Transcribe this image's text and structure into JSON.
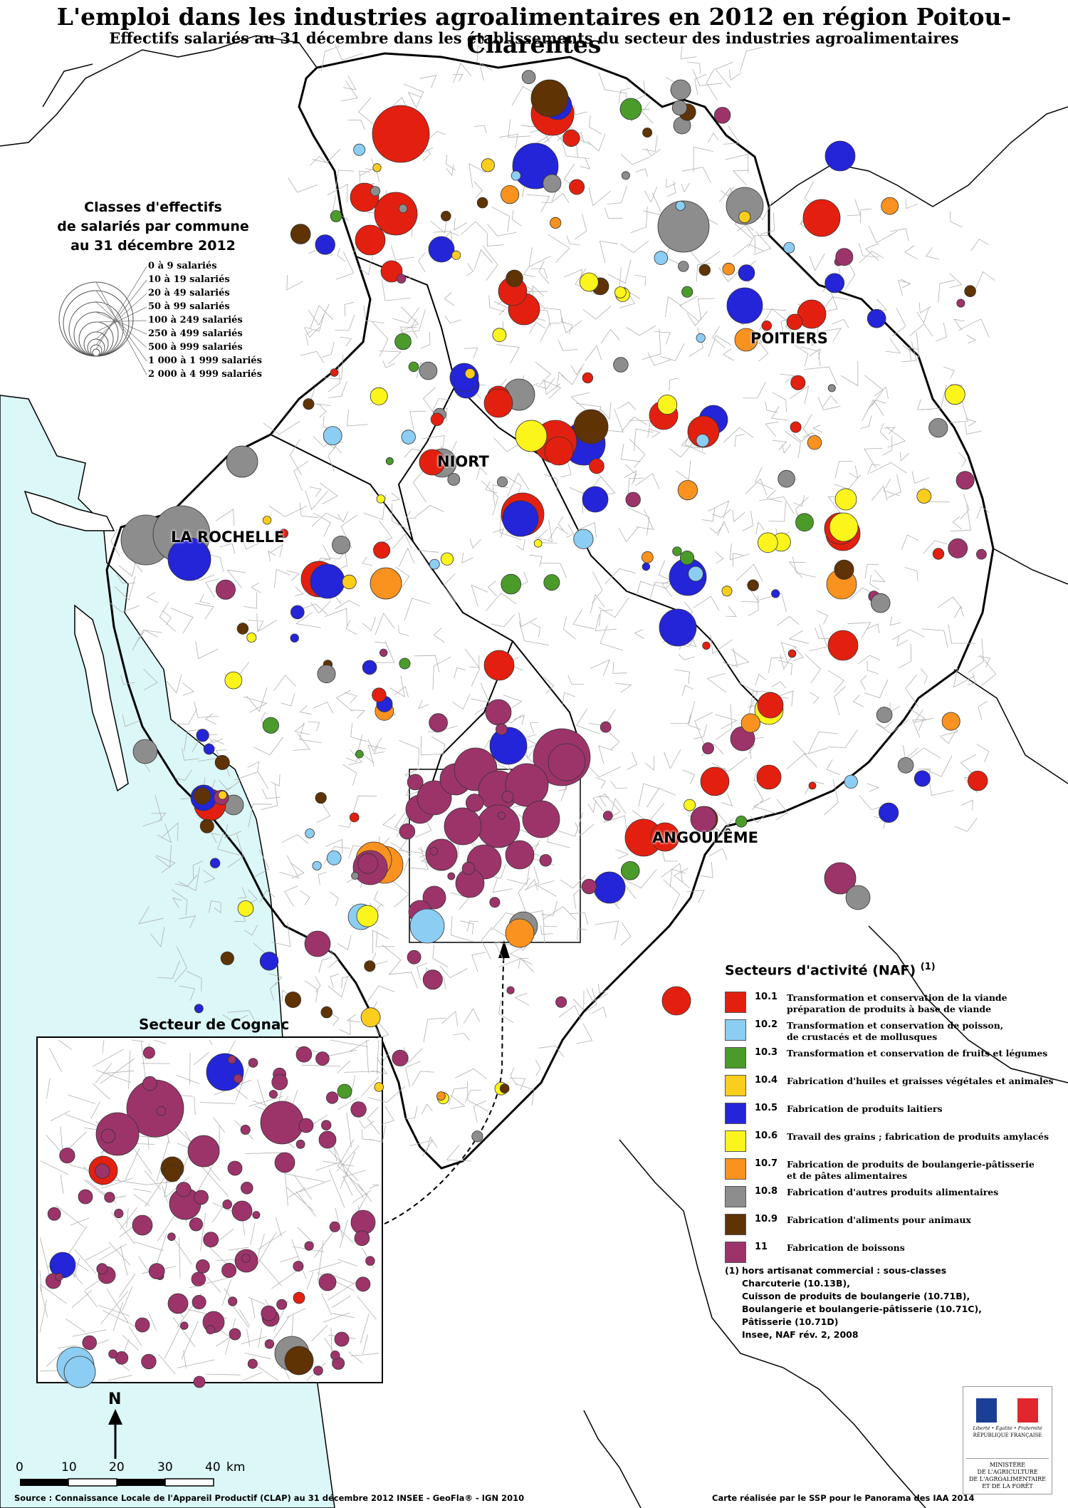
{
  "title": "L'emploi dans les industries agroalimentaires en 2012 en région Poitou-Charentes",
  "subtitle": "Effectifs salariés au 31 décembre  dans les établissements du secteur des industries agroalimentaires",
  "cities": [
    "POITIERS",
    "NIORT",
    "LA ROCHELLE",
    "ANGOULÊME"
  ],
  "size_legend": {
    "heading": [
      "Classes d'effectifs",
      "de salariés par commune",
      "au 31 décembre 2012"
    ],
    "classes": [
      "0 à 9 salariés",
      "10 à 19 salariés",
      "20 à 49 salariés",
      "50 à 99 salariés",
      "100 à 249 salariés",
      "250 à 499 salariés",
      "500 à 999 salariés",
      "1 000 à 1 999 salariés",
      "2 000 à 4 999 salariés"
    ]
  },
  "sector_legend": {
    "heading": "Secteurs d'activité (NAF)",
    "heading_mark": "(1)",
    "sectors": [
      {
        "code": "10.1",
        "color": "#e3200f",
        "label": "Transformation et conservation de la viande",
        "label2": "préparation de produits à base de viande"
      },
      {
        "code": "10.2",
        "color": "#8ccdf3",
        "label": "Transformation et conservation de poisson,",
        "label2": "de crustacés et de mollusques"
      },
      {
        "code": "10.3",
        "color": "#4a9b2a",
        "label": "Transformation et conservation de fruits et légumes",
        "label2": ""
      },
      {
        "code": "10.4",
        "color": "#fbcd1c",
        "label": "Fabrication d'huiles et graisses végétales et animales",
        "label2": ""
      },
      {
        "code": "10.5",
        "color": "#2424d9",
        "label": "Fabrication de produits laitiers",
        "label2": ""
      },
      {
        "code": "10.6",
        "color": "#fbf51b",
        "label": "Travail des grains ; fabrication de produits amylacés",
        "label2": ""
      },
      {
        "code": "10.7",
        "color": "#f9921e",
        "label": "Fabrication de produits de boulangerie-pâtisserie",
        "label2": "et de pâtes alimentaires"
      },
      {
        "code": "10.8",
        "color": "#8d8d8d",
        "label": "Fabrication d'autres produits alimentaires",
        "label2": ""
      },
      {
        "code": "10.9",
        "color": "#5f3304",
        "label": "Fabrication d'aliments pour animaux",
        "label2": ""
      },
      {
        "code": "11",
        "color": "#9c346a",
        "label": "Fabrication de boissons",
        "label2": ""
      }
    ]
  },
  "note": {
    "mark": "(1)",
    "lines": [
      "hors artisanat commercial : sous-classes",
      "Charcuterie (10.13B),",
      "Cuisson de produits de boulangerie (10.71B),",
      "Boulangerie et boulangerie-pâtisserie (10.71C),",
      "Pâtisserie (10.71D)",
      "Insee, NAF rév. 2, 2008"
    ]
  },
  "inset_title": "Secteur de Cognac",
  "scale": {
    "ticks": [
      "0",
      "10",
      "20",
      "30",
      "40"
    ],
    "unit": "km"
  },
  "north": "N",
  "source": "Source : Connaissance Locale de l'Appareil Productif (CLAP) au 31 décembre 2012  INSEE - GeoFla® - IGN 2010",
  "credit": "Carte réalisée par le SSP pour le Panorama des IAA 2014",
  "logo": {
    "tagline": "Liberté • Égalité • Fraternité",
    "republic": "RÉPUBLIQUE FRANÇAISE",
    "ministry": [
      "MINISTÈRE",
      "DE L'AGRICULTURE",
      "DE L'AGROALIMENTAIRE",
      "ET DE LA FORÊT"
    ]
  },
  "colors": {
    "sea": "#dbf7f8",
    "region_fill": "#ffffff",
    "border": "#000000",
    "commune_line": "#b0b0b0"
  }
}
